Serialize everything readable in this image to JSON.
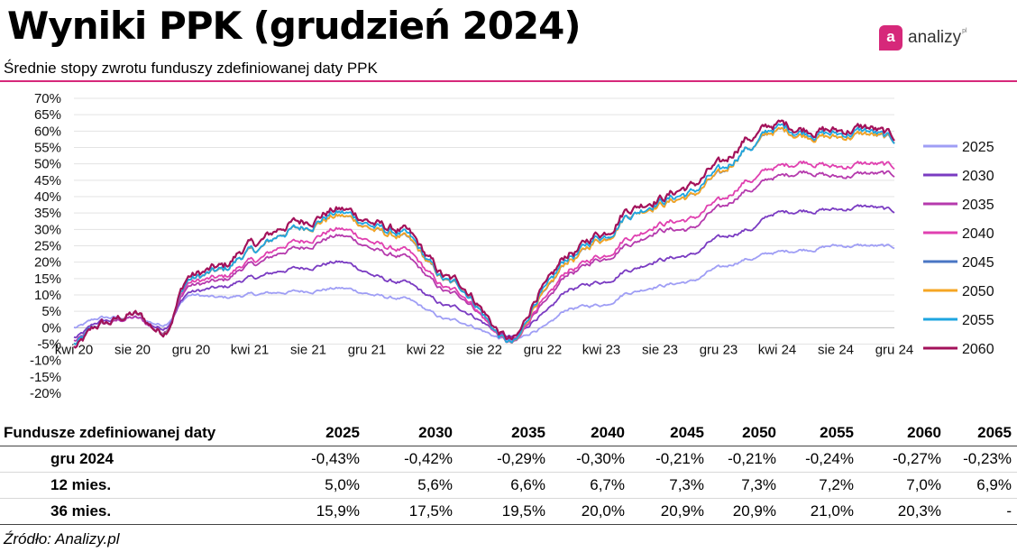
{
  "header": {
    "title": "Wyniki PPK (grudzień 2024)",
    "subtitle": "Średnie stopy zwrotu funduszy zdefiniowanej daty PPK",
    "accent_color": "#d6287a"
  },
  "logo": {
    "mark": "a",
    "text": "analizy",
    "suffix": "pl"
  },
  "chart_data": {
    "type": "line",
    "title": "",
    "xlabel": "",
    "ylabel": "",
    "ylim": [
      -20,
      70
    ],
    "yticks": [
      "70%",
      "65%",
      "60%",
      "55%",
      "50%",
      "45%",
      "40%",
      "35%",
      "30%",
      "25%",
      "20%",
      "15%",
      "10%",
      "5%",
      "0%",
      "-5%",
      "-10%",
      "-15%",
      "-20%"
    ],
    "xticks": [
      "kwi 20",
      "sie 20",
      "gru 20",
      "kwi 21",
      "sie 21",
      "gru 21",
      "kwi 22",
      "sie 22",
      "gru 22",
      "kwi 23",
      "sie 23",
      "gru 23",
      "kwi 24",
      "sie 24",
      "gru 24"
    ],
    "x_range": [
      0,
      56
    ],
    "grid": "horizontal",
    "legend_position": "right",
    "series": [
      {
        "name": "2025",
        "color": "#9f9ef5",
        "x": [
          0,
          2,
          4,
          6,
          8,
          10,
          12,
          15,
          18,
          22,
          26,
          30,
          32,
          34,
          36,
          38,
          40,
          42,
          44,
          46,
          48,
          50,
          52,
          54,
          56
        ],
        "values": [
          0,
          3,
          3,
          1,
          10,
          9,
          10,
          11,
          12,
          9,
          2,
          -4,
          0,
          6,
          7,
          11,
          13,
          14,
          18,
          21,
          23,
          24,
          25,
          25,
          24.5
        ]
      },
      {
        "name": "2030",
        "color": "#7a3bc2",
        "x": [
          0,
          2,
          4,
          6,
          8,
          10,
          12,
          15,
          18,
          22,
          26,
          30,
          32,
          34,
          36,
          38,
          40,
          42,
          44,
          46,
          48,
          50,
          52,
          54,
          56
        ],
        "values": [
          -3,
          2,
          3,
          0,
          11,
          12,
          15,
          18,
          20,
          14,
          6,
          -3,
          4,
          12,
          14,
          18,
          21,
          22,
          27,
          30,
          35,
          36,
          36,
          37,
          35.5
        ]
      },
      {
        "name": "2035",
        "color": "#b53aad",
        "x": [
          0,
          2,
          4,
          6,
          8,
          10,
          12,
          15,
          18,
          22,
          26,
          30,
          32,
          34,
          36,
          38,
          40,
          42,
          44,
          46,
          48,
          50,
          52,
          54,
          56
        ],
        "values": [
          -4,
          1,
          3,
          -1,
          13,
          14,
          19,
          24,
          28,
          22,
          10,
          -4,
          7,
          17,
          21,
          26,
          30,
          30,
          36,
          42,
          46,
          48,
          46,
          47,
          46.5
        ]
      },
      {
        "name": "2040",
        "color": "#e040b0",
        "x": [
          0,
          2,
          4,
          6,
          8,
          10,
          12,
          15,
          18,
          22,
          26,
          30,
          32,
          34,
          36,
          38,
          40,
          42,
          44,
          46,
          48,
          50,
          52,
          54,
          56
        ],
        "values": [
          -5,
          1,
          4,
          -1,
          14,
          15,
          20,
          26,
          30,
          24,
          11,
          -5,
          8,
          18,
          22,
          28,
          32,
          33,
          38,
          45,
          49,
          51,
          49,
          50,
          49
        ]
      },
      {
        "name": "2045",
        "color": "#4a76c4",
        "x": [
          0,
          2,
          4,
          6,
          8,
          10,
          12,
          15,
          18,
          22,
          26,
          30,
          32,
          34,
          36,
          38,
          40,
          42,
          44,
          46,
          48,
          50,
          52,
          54,
          56
        ],
        "values": [
          -5,
          1,
          4,
          -1,
          15,
          17,
          23,
          30,
          34,
          28,
          13,
          -5,
          10,
          21,
          27,
          35,
          38,
          40,
          46,
          55,
          60,
          59,
          58,
          59,
          57
        ]
      },
      {
        "name": "2050",
        "color": "#f6a623",
        "x": [
          0,
          2,
          4,
          6,
          8,
          10,
          12,
          15,
          18,
          22,
          26,
          30,
          32,
          34,
          36,
          38,
          40,
          42,
          44,
          46,
          48,
          50,
          52,
          54,
          56
        ],
        "values": [
          -5,
          1,
          4,
          -1,
          15,
          17,
          23,
          30,
          34,
          28,
          13,
          -5,
          10,
          21,
          27,
          35,
          38,
          40,
          46,
          55,
          60,
          59,
          58,
          59,
          57
        ]
      },
      {
        "name": "2055",
        "color": "#1ea5e0",
        "x": [
          0,
          2,
          4,
          6,
          8,
          10,
          12,
          15,
          18,
          22,
          26,
          30,
          32,
          34,
          36,
          38,
          40,
          42,
          44,
          46,
          48,
          50,
          52,
          54,
          56
        ],
        "values": [
          -5,
          1,
          4,
          -1,
          15,
          17,
          23,
          30,
          35,
          29,
          13,
          -5,
          11,
          22,
          28,
          35,
          39,
          41,
          47,
          55,
          61,
          60,
          59,
          60,
          57
        ]
      },
      {
        "name": "2060",
        "color": "#a3115a",
        "x": [
          0,
          2,
          4,
          6,
          8,
          10,
          12,
          15,
          18,
          22,
          26,
          30,
          32,
          34,
          36,
          38,
          40,
          42,
          44,
          46,
          48,
          50,
          52,
          54,
          56
        ],
        "values": [
          -6,
          1,
          4,
          -1,
          16,
          18,
          25,
          32,
          36,
          30,
          14,
          -4,
          12,
          23,
          29,
          37,
          40,
          43,
          49,
          58,
          62,
          61,
          60,
          61,
          58
        ]
      }
    ]
  },
  "table": {
    "header_label": "Fundusze zdefiniowanej daty",
    "columns": [
      "2025",
      "2030",
      "2035",
      "2040",
      "2045",
      "2050",
      "2055",
      "2060",
      "2065"
    ],
    "rows": [
      {
        "label": "gru 2024",
        "cells": [
          "-0,43%",
          "-0,42%",
          "-0,29%",
          "-0,30%",
          "-0,21%",
          "-0,21%",
          "-0,24%",
          "-0,27%",
          "-0,23%"
        ]
      },
      {
        "label": "12 mies.",
        "cells": [
          "5,0%",
          "5,6%",
          "6,6%",
          "6,7%",
          "7,3%",
          "7,3%",
          "7,2%",
          "7,0%",
          "6,9%"
        ]
      },
      {
        "label": "36 mies.",
        "cells": [
          "15,9%",
          "17,5%",
          "19,5%",
          "20,0%",
          "20,9%",
          "20,9%",
          "21,0%",
          "20,3%",
          "-"
        ]
      }
    ]
  },
  "source": "Źródło: Analizy.pl"
}
